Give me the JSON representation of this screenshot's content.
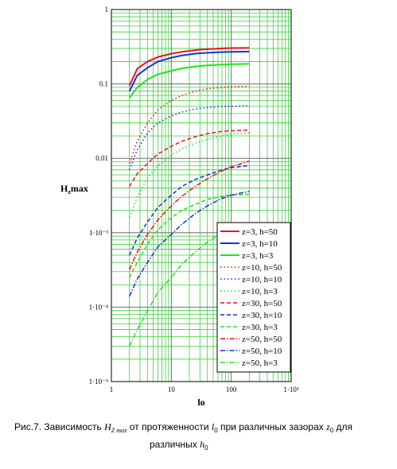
{
  "chart_data": {
    "type": "line",
    "xscale": "log",
    "yscale": "log",
    "xlim": [
      1,
      1000
    ],
    "ylim": [
      1e-05,
      1
    ],
    "grid": true,
    "legend_position": "bottom-right",
    "xlabel": "lo",
    "ylabel": "Hzmax",
    "ylabel_main": "H",
    "ylabel_sub": "z",
    "ylabel_rest": "max",
    "xtick_labels": [
      "1",
      "10",
      "100",
      "1·10³"
    ],
    "ytick_labels": [
      "1·10⁻⁵",
      "1·10⁻⁴",
      "1·10⁻³",
      "0.01",
      "0.1",
      "1"
    ],
    "x": [
      2,
      2.7,
      4,
      6,
      10,
      15,
      25,
      40,
      70,
      100,
      200
    ],
    "series": [
      {
        "name": "z=3, h=50",
        "color": "#e8141e",
        "dash": "solid",
        "values": [
          0.095,
          0.16,
          0.2,
          0.23,
          0.255,
          0.27,
          0.285,
          0.293,
          0.3,
          0.303,
          0.305
        ]
      },
      {
        "name": "z=3, h=10",
        "color": "#1a2fd6",
        "dash": "solid",
        "values": [
          0.08,
          0.13,
          0.165,
          0.2,
          0.225,
          0.242,
          0.255,
          0.262,
          0.268,
          0.27,
          0.272
        ]
      },
      {
        "name": "z=3, h=3",
        "color": "#22e022",
        "dash": "solid",
        "values": [
          0.065,
          0.09,
          0.115,
          0.135,
          0.15,
          0.162,
          0.172,
          0.178,
          0.182,
          0.184,
          0.186
        ]
      },
      {
        "name": "z=10, h=50",
        "color": "#e8141e",
        "dash": "dot",
        "values": [
          0.0085,
          0.017,
          0.03,
          0.045,
          0.06,
          0.07,
          0.08,
          0.086,
          0.09,
          0.092,
          0.093
        ]
      },
      {
        "name": "z=10, h=10",
        "color": "#1a2fd6",
        "dash": "dot",
        "values": [
          0.007,
          0.013,
          0.022,
          0.03,
          0.037,
          0.042,
          0.046,
          0.048,
          0.05,
          0.05,
          0.051
        ]
      },
      {
        "name": "z=10, h=3",
        "color": "#22e022",
        "dash": "dot",
        "values": [
          0.0016,
          0.003,
          0.0055,
          0.008,
          0.011,
          0.0135,
          0.016,
          0.018,
          0.02,
          0.021,
          0.022
        ]
      },
      {
        "name": "z=30, h=50",
        "color": "#e8141e",
        "dash": "dash",
        "values": [
          0.0042,
          0.0062,
          0.0085,
          0.0115,
          0.0145,
          0.017,
          0.0195,
          0.0215,
          0.023,
          0.0235,
          0.024
        ]
      },
      {
        "name": "z=30, h=10",
        "color": "#1a2fd6",
        "dash": "dash",
        "values": [
          0.0005,
          0.00085,
          0.0014,
          0.0022,
          0.0032,
          0.0042,
          0.0052,
          0.006,
          0.007,
          0.0075,
          0.008
        ]
      },
      {
        "name": "z=30, h=3",
        "color": "#22e022",
        "dash": "dash",
        "values": [
          0.00025,
          0.0004,
          0.0007,
          0.0011,
          0.0016,
          0.002,
          0.0024,
          0.0028,
          0.0031,
          0.0032,
          0.0033
        ]
      },
      {
        "name": "z=50, h=50",
        "color": "#e8141e",
        "dash": "dashdot",
        "values": [
          0.00032,
          0.00055,
          0.00095,
          0.0015,
          0.0023,
          0.0031,
          0.0042,
          0.0053,
          0.0068,
          0.0077,
          0.0092
        ]
      },
      {
        "name": "z=50, h=10",
        "color": "#1a2fd6",
        "dash": "dashdot",
        "values": [
          0.00014,
          0.00024,
          0.0004,
          0.00065,
          0.00095,
          0.0013,
          0.0018,
          0.0023,
          0.0029,
          0.0032,
          0.0036
        ]
      },
      {
        "name": "z=50, h=3",
        "color": "#22e022",
        "dash": "dashdot",
        "values": [
          3e-05,
          5e-05,
          9e-05,
          0.00016,
          0.00025,
          0.00038,
          0.00055,
          0.00075,
          0.001,
          0.0011,
          0.0013
        ]
      }
    ]
  },
  "caption": {
    "part1": "Рис.7. Зависимость ",
    "h_main": "H",
    "h_sub": "Z max",
    "part2": " от протяженности ",
    "l_main": "l",
    "l_sub": "0",
    "part3": " при различных зазорах ",
    "z_main": "z",
    "z_sub": "0",
    "part4": " для",
    "line2": "различных ",
    "h0_main": "h",
    "h0_sub": "0"
  }
}
